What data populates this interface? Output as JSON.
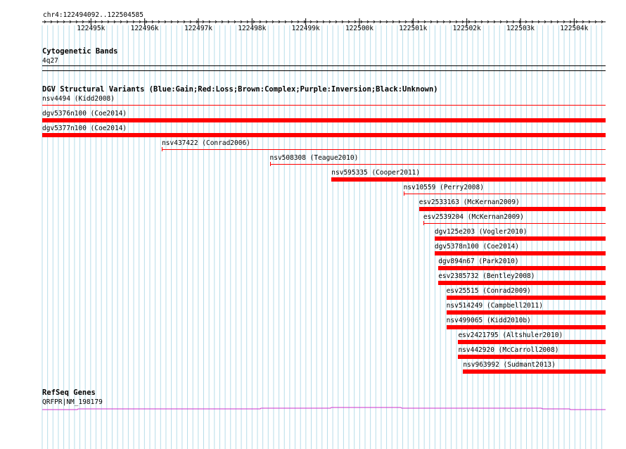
{
  "ruler": {
    "region": "chr4:122494092..122504585",
    "ticks": [
      "122495k",
      "122496k",
      "122497k",
      "122498k",
      "122499k",
      "122500k",
      "122501k",
      "122502k",
      "122503k",
      "122504k"
    ]
  },
  "cytoband": {
    "title": "Cytogenetic Bands",
    "band": "4q27"
  },
  "dgv": {
    "title": "DGV Structural Variants (Blue:Gain;Red:Loss;Brown:Complex;Purple:Inversion;Black:Unknown)",
    "loss_color": "#ff0000",
    "variants": [
      {
        "label": "nsv4494 (Kidd2008)",
        "start": 122494092,
        "end": 122504585,
        "style": "thin"
      },
      {
        "label": "dgv5376n100 (Coe2014)",
        "start": 122494092,
        "end": 122504585,
        "style": "thick"
      },
      {
        "label": "dgv5377n100 (Coe2014)",
        "start": 122494092,
        "end": 122504585,
        "style": "thick"
      },
      {
        "label": "nsv437422 (Conrad2006)",
        "start": 122496320,
        "end": 122504585,
        "style": "thin"
      },
      {
        "label": "nsv508308 (Teague2010)",
        "start": 122498330,
        "end": 122504585,
        "style": "thin"
      },
      {
        "label": "nsv595335 (Cooper2011)",
        "start": 122499480,
        "end": 122504585,
        "style": "thick"
      },
      {
        "label": "nsv10559 (Perry2008)",
        "start": 122500820,
        "end": 122504585,
        "style": "thin"
      },
      {
        "label": "esv2533163 (McKernan2009)",
        "start": 122501110,
        "end": 122504585,
        "style": "thick"
      },
      {
        "label": "esv2539204 (McKernan2009)",
        "start": 122501190,
        "end": 122504585,
        "style": "thin"
      },
      {
        "label": "dgv125e203 (Vogler2010)",
        "start": 122501400,
        "end": 122504585,
        "style": "thick"
      },
      {
        "label": "dgv5378n100 (Coe2014)",
        "start": 122501400,
        "end": 122504585,
        "style": "thick"
      },
      {
        "label": "dgv894n67 (Park2010)",
        "start": 122501470,
        "end": 122504585,
        "style": "thick"
      },
      {
        "label": "esv2385732 (Bentley2008)",
        "start": 122501470,
        "end": 122504585,
        "style": "thick"
      },
      {
        "label": "esv25515 (Conrad2009)",
        "start": 122501620,
        "end": 122504585,
        "style": "thick"
      },
      {
        "label": "nsv514249 (Campbell2011)",
        "start": 122501620,
        "end": 122504585,
        "style": "thick"
      },
      {
        "label": "nsv499065 (Kidd2010b)",
        "start": 122501620,
        "end": 122504585,
        "style": "thick"
      },
      {
        "label": "esv2421795 (Altshuler2010)",
        "start": 122501840,
        "end": 122504585,
        "style": "thick"
      },
      {
        "label": "nsv442920 (McCarroll2008)",
        "start": 122501840,
        "end": 122504585,
        "style": "thick"
      },
      {
        "label": "nsv963992 (Sudmant2013)",
        "start": 122501930,
        "end": 122504585,
        "style": "thick"
      }
    ]
  },
  "refseq": {
    "title": "RefSeq Genes",
    "gene": "QRFPR|NM_198179",
    "gene_color": "#cc33cc"
  }
}
